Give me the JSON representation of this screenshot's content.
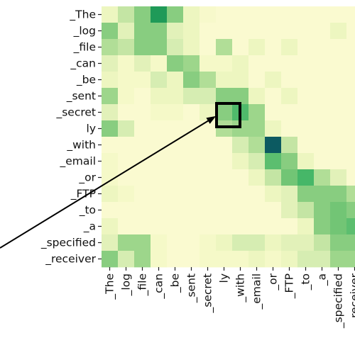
{
  "chart_data": {
    "type": "heatmap",
    "title": "",
    "xlabel": "",
    "ylabel": "",
    "grid": false,
    "colormap": [
      "#fffbd8",
      "#f3f8c4",
      "#d6edb2",
      "#a8da90",
      "#72c575",
      "#3bb465",
      "#1f9a58",
      "#0f6d5f",
      "#0a4e63"
    ],
    "highlight_color": "#000000",
    "arrow_color": "#000000",
    "tokens": [
      "_The",
      "_log",
      "_file",
      "_can",
      "_be",
      "_sent",
      "_secret",
      "ly",
      "_with",
      "_email",
      "_or",
      "_FTP",
      "_to",
      "_a",
      "_specified",
      "_receiver"
    ],
    "highlight_cell": {
      "row": "_secret",
      "col": "ly"
    },
    "values": [
      [
        0.15,
        0.3,
        0.45,
        0.75,
        0.45,
        0.15,
        0.08,
        0.05,
        0.05,
        0.05,
        0.05,
        0.05,
        0.05,
        0.05,
        0.05,
        0.05
      ],
      [
        0.45,
        0.2,
        0.45,
        0.45,
        0.2,
        0.15,
        0.05,
        0.05,
        0.05,
        0.05,
        0.05,
        0.05,
        0.05,
        0.05,
        0.15,
        0.05
      ],
      [
        0.35,
        0.3,
        0.45,
        0.45,
        0.25,
        0.15,
        0.05,
        0.35,
        0.05,
        0.15,
        0.05,
        0.15,
        0.05,
        0.05,
        0.05,
        0.05
      ],
      [
        0.2,
        0.1,
        0.2,
        0.1,
        0.45,
        0.4,
        0.1,
        0.1,
        0.15,
        0.05,
        0.05,
        0.05,
        0.05,
        0.05,
        0.05,
        0.05
      ],
      [
        0.15,
        0.1,
        0.1,
        0.25,
        0.15,
        0.45,
        0.35,
        0.15,
        0.15,
        0.05,
        0.15,
        0.05,
        0.05,
        0.05,
        0.05,
        0.05
      ],
      [
        0.4,
        0.1,
        0.05,
        0.15,
        0.15,
        0.25,
        0.25,
        0.45,
        0.45,
        0.15,
        0.05,
        0.15,
        0.05,
        0.05,
        0.05,
        0.05
      ],
      [
        0.2,
        0.05,
        0.05,
        0.1,
        0.1,
        0.05,
        0.15,
        0.45,
        0.58,
        0.4,
        0.05,
        0.05,
        0.05,
        0.05,
        0.05,
        0.05
      ],
      [
        0.45,
        0.25,
        0.05,
        0.05,
        0.05,
        0.05,
        0.05,
        0.35,
        0.4,
        0.4,
        0.15,
        0.05,
        0.05,
        0.05,
        0.05,
        0.05
      ],
      [
        0.05,
        0.05,
        0.05,
        0.05,
        0.05,
        0.05,
        0.05,
        0.05,
        0.25,
        0.35,
        0.95,
        0.3,
        0.05,
        0.05,
        0.05,
        0.05
      ],
      [
        0.1,
        0.05,
        0.05,
        0.05,
        0.05,
        0.05,
        0.05,
        0.05,
        0.15,
        0.25,
        0.55,
        0.45,
        0.15,
        0.05,
        0.05,
        0.05
      ],
      [
        0.1,
        0.05,
        0.05,
        0.05,
        0.05,
        0.05,
        0.05,
        0.05,
        0.05,
        0.15,
        0.3,
        0.5,
        0.6,
        0.35,
        0.2,
        0.05
      ],
      [
        0.15,
        0.1,
        0.05,
        0.05,
        0.05,
        0.05,
        0.05,
        0.05,
        0.05,
        0.05,
        0.15,
        0.2,
        0.45,
        0.45,
        0.45,
        0.35
      ],
      [
        0.05,
        0.05,
        0.05,
        0.05,
        0.05,
        0.05,
        0.05,
        0.05,
        0.05,
        0.05,
        0.05,
        0.2,
        0.3,
        0.45,
        0.5,
        0.45
      ],
      [
        0.15,
        0.05,
        0.05,
        0.05,
        0.05,
        0.05,
        0.05,
        0.05,
        0.05,
        0.05,
        0.05,
        0.05,
        0.15,
        0.45,
        0.5,
        0.55
      ],
      [
        0.2,
        0.4,
        0.4,
        0.1,
        0.05,
        0.05,
        0.1,
        0.15,
        0.25,
        0.25,
        0.15,
        0.2,
        0.2,
        0.3,
        0.45,
        0.45
      ],
      [
        0.45,
        0.25,
        0.4,
        0.1,
        0.05,
        0.05,
        0.1,
        0.1,
        0.1,
        0.15,
        0.1,
        0.15,
        0.25,
        0.25,
        0.4,
        0.4
      ]
    ]
  }
}
